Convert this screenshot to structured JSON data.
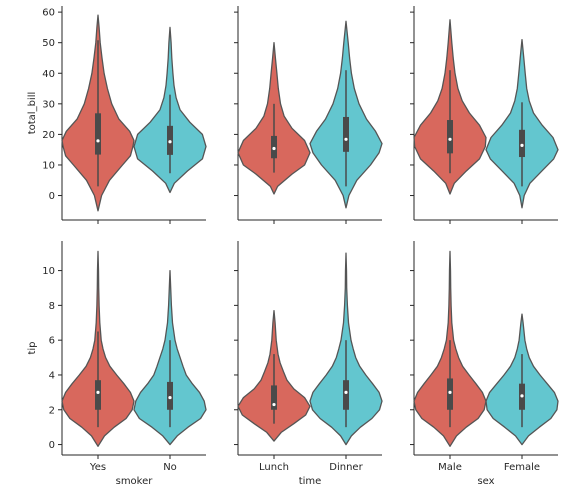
{
  "colors": {
    "first": "#D8685D",
    "second": "#63C6CF",
    "edge": "#555555",
    "box": "#4a4a4a",
    "median": "#ffffff",
    "axis": "#262626"
  },
  "chart_data": {
    "type": "violin",
    "rows": [
      {
        "ylabel": "total_bill",
        "ylim": [
          -8,
          62
        ],
        "yticks": [
          0,
          10,
          20,
          30,
          40,
          50,
          60
        ],
        "yticklabels": [
          "0",
          "10",
          "20",
          "30",
          "40",
          "50",
          "60"
        ]
      },
      {
        "ylabel": "tip",
        "ylim": [
          -0.6,
          11.7
        ],
        "yticks": [
          0,
          2,
          4,
          6,
          8,
          10
        ],
        "yticklabels": [
          "0",
          "2",
          "4",
          "6",
          "8",
          "10"
        ]
      }
    ],
    "columns": [
      {
        "xlabel": "smoker",
        "categories": [
          "Yes",
          "No"
        ]
      },
      {
        "xlabel": "time",
        "categories": [
          "Lunch",
          "Dinner"
        ]
      },
      {
        "xlabel": "sex",
        "categories": [
          "Male",
          "Female"
        ]
      }
    ],
    "panels": [
      [
        [
          {
            "min": -5,
            "max": 59,
            "q1": 13.4,
            "median": 17.9,
            "q3": 26.9,
            "whisker_low": 3,
            "whisker_high": 50.8,
            "profile": [
              [
                -5,
                0
              ],
              [
                0,
                0.1
              ],
              [
                5,
                0.32
              ],
              [
                10,
                0.68
              ],
              [
                13,
                0.9
              ],
              [
                16,
                0.97
              ],
              [
                18,
                1
              ],
              [
                21,
                0.88
              ],
              [
                25,
                0.58
              ],
              [
                30,
                0.38
              ],
              [
                35,
                0.26
              ],
              [
                40,
                0.17
              ],
              [
                45,
                0.11
              ],
              [
                50,
                0.06
              ],
              [
                55,
                0.03
              ],
              [
                59,
                0
              ]
            ]
          },
          {
            "min": 1,
            "max": 55,
            "q1": 13.3,
            "median": 17.6,
            "q3": 22.8,
            "whisker_low": 7.3,
            "whisker_high": 33,
            "profile": [
              [
                1,
                0
              ],
              [
                4,
                0.12
              ],
              [
                8,
                0.48
              ],
              [
                12,
                0.9
              ],
              [
                16,
                1
              ],
              [
                20,
                0.9
              ],
              [
                24,
                0.55
              ],
              [
                28,
                0.28
              ],
              [
                32,
                0.17
              ],
              [
                36,
                0.11
              ],
              [
                40,
                0.08
              ],
              [
                45,
                0.05
              ],
              [
                50,
                0.03
              ],
              [
                55,
                0
              ]
            ]
          }
        ],
        [
          {
            "min": 0.5,
            "max": 50,
            "q1": 12.2,
            "median": 15.4,
            "q3": 19.5,
            "whisker_low": 7.5,
            "whisker_high": 30,
            "profile": [
              [
                0.5,
                0
              ],
              [
                3,
                0.1
              ],
              [
                7,
                0.5
              ],
              [
                10,
                0.85
              ],
              [
                14,
                1
              ],
              [
                18,
                0.85
              ],
              [
                22,
                0.5
              ],
              [
                26,
                0.28
              ],
              [
                30,
                0.18
              ],
              [
                35,
                0.12
              ],
              [
                40,
                0.08
              ],
              [
                45,
                0.04
              ],
              [
                50,
                0
              ]
            ]
          },
          {
            "min": -4,
            "max": 57,
            "q1": 14.3,
            "median": 18.4,
            "q3": 25.7,
            "whisker_low": 3,
            "whisker_high": 41,
            "profile": [
              [
                -4,
                0
              ],
              [
                0,
                0.08
              ],
              [
                5,
                0.3
              ],
              [
                10,
                0.68
              ],
              [
                14,
                0.92
              ],
              [
                17,
                1
              ],
              [
                21,
                0.82
              ],
              [
                25,
                0.57
              ],
              [
                30,
                0.36
              ],
              [
                35,
                0.23
              ],
              [
                40,
                0.15
              ],
              [
                45,
                0.1
              ],
              [
                50,
                0.06
              ],
              [
                57,
                0
              ]
            ]
          }
        ],
        [
          {
            "min": 0.5,
            "max": 57.5,
            "q1": 13.8,
            "median": 18.4,
            "q3": 24.7,
            "whisker_low": 7.3,
            "whisker_high": 41,
            "profile": [
              [
                0.5,
                0
              ],
              [
                4,
                0.12
              ],
              [
                8,
                0.45
              ],
              [
                12,
                0.82
              ],
              [
                16,
                0.98
              ],
              [
                19,
                1
              ],
              [
                23,
                0.82
              ],
              [
                27,
                0.54
              ],
              [
                31,
                0.34
              ],
              [
                35,
                0.22
              ],
              [
                40,
                0.14
              ],
              [
                45,
                0.09
              ],
              [
                50,
                0.05
              ],
              [
                57.5,
                0
              ]
            ]
          },
          {
            "min": -4,
            "max": 51,
            "q1": 12.6,
            "median": 16.4,
            "q3": 21.5,
            "whisker_low": 3,
            "whisker_high": 30.5,
            "profile": [
              [
                -4,
                0
              ],
              [
                0,
                0.06
              ],
              [
                4,
                0.22
              ],
              [
                8,
                0.55
              ],
              [
                12,
                0.88
              ],
              [
                15,
                1
              ],
              [
                19,
                0.86
              ],
              [
                23,
                0.56
              ],
              [
                27,
                0.32
              ],
              [
                31,
                0.2
              ],
              [
                35,
                0.13
              ],
              [
                40,
                0.09
              ],
              [
                45,
                0.05
              ],
              [
                51,
                0
              ]
            ]
          }
        ]
      ],
      [
        [
          {
            "min": -0.1,
            "max": 11.1,
            "q1": 2,
            "median": 3,
            "q3": 3.7,
            "whisker_low": 1,
            "whisker_high": 6.5,
            "profile": [
              [
                -0.1,
                0
              ],
              [
                0.5,
                0.18
              ],
              [
                1,
                0.45
              ],
              [
                1.5,
                0.78
              ],
              [
                2,
                0.95
              ],
              [
                2.5,
                1
              ],
              [
                3,
                0.9
              ],
              [
                3.5,
                0.72
              ],
              [
                4,
                0.52
              ],
              [
                4.5,
                0.33
              ],
              [
                5,
                0.21
              ],
              [
                5.5,
                0.14
              ],
              [
                6,
                0.09
              ],
              [
                7,
                0.05
              ],
              [
                8,
                0.03
              ],
              [
                9,
                0.02
              ],
              [
                10,
                0.015
              ],
              [
                11.1,
                0
              ]
            ]
          },
          {
            "min": 0,
            "max": 10,
            "q1": 2,
            "median": 2.7,
            "q3": 3.6,
            "whisker_low": 1,
            "whisker_high": 6,
            "profile": [
              [
                0,
                0
              ],
              [
                0.5,
                0.2
              ],
              [
                1,
                0.5
              ],
              [
                1.5,
                0.85
              ],
              [
                2,
                1
              ],
              [
                2.5,
                0.95
              ],
              [
                3,
                0.82
              ],
              [
                3.5,
                0.62
              ],
              [
                4,
                0.45
              ],
              [
                4.5,
                0.36
              ],
              [
                5,
                0.28
              ],
              [
                5.5,
                0.2
              ],
              [
                6,
                0.14
              ],
              [
                7,
                0.07
              ],
              [
                8,
                0.04
              ],
              [
                9,
                0.02
              ],
              [
                10,
                0
              ]
            ]
          }
        ],
        [
          {
            "min": 0.2,
            "max": 7.7,
            "q1": 2,
            "median": 2.3,
            "q3": 3.4,
            "whisker_low": 1.2,
            "whisker_high": 5.2,
            "profile": [
              [
                0.2,
                0
              ],
              [
                0.7,
                0.2
              ],
              [
                1.2,
                0.55
              ],
              [
                1.7,
                0.88
              ],
              [
                2.2,
                1
              ],
              [
                2.7,
                0.85
              ],
              [
                3.2,
                0.55
              ],
              [
                3.7,
                0.36
              ],
              [
                4.2,
                0.26
              ],
              [
                4.7,
                0.17
              ],
              [
                5.2,
                0.11
              ],
              [
                6,
                0.06
              ],
              [
                7,
                0.03
              ],
              [
                7.7,
                0
              ]
            ]
          },
          {
            "min": 0,
            "max": 11,
            "q1": 2,
            "median": 3,
            "q3": 3.7,
            "whisker_low": 1,
            "whisker_high": 6,
            "profile": [
              [
                0,
                0
              ],
              [
                0.5,
                0.15
              ],
              [
                1,
                0.4
              ],
              [
                1.5,
                0.72
              ],
              [
                2,
                0.93
              ],
              [
                2.5,
                1
              ],
              [
                3,
                0.92
              ],
              [
                3.5,
                0.74
              ],
              [
                4,
                0.55
              ],
              [
                4.5,
                0.38
              ],
              [
                5,
                0.27
              ],
              [
                5.5,
                0.2
              ],
              [
                6,
                0.14
              ],
              [
                7,
                0.07
              ],
              [
                8,
                0.04
              ],
              [
                9,
                0.02
              ],
              [
                10,
                0.015
              ],
              [
                11,
                0
              ]
            ]
          }
        ],
        [
          {
            "min": -0.1,
            "max": 11.1,
            "q1": 2,
            "median": 3,
            "q3": 3.8,
            "whisker_low": 1,
            "whisker_high": 6,
            "profile": [
              [
                -0.1,
                0
              ],
              [
                0.5,
                0.18
              ],
              [
                1,
                0.45
              ],
              [
                1.5,
                0.78
              ],
              [
                2,
                0.95
              ],
              [
                2.5,
                1
              ],
              [
                3,
                0.9
              ],
              [
                3.5,
                0.72
              ],
              [
                4,
                0.53
              ],
              [
                4.5,
                0.35
              ],
              [
                5,
                0.24
              ],
              [
                5.5,
                0.16
              ],
              [
                6,
                0.1
              ],
              [
                7,
                0.05
              ],
              [
                8,
                0.03
              ],
              [
                9,
                0.02
              ],
              [
                10,
                0.015
              ],
              [
                11.1,
                0
              ]
            ]
          },
          {
            "min": 0,
            "max": 7.5,
            "q1": 2,
            "median": 2.8,
            "q3": 3.5,
            "whisker_low": 1,
            "whisker_high": 5.2,
            "profile": [
              [
                0,
                0
              ],
              [
                0.5,
                0.18
              ],
              [
                1,
                0.48
              ],
              [
                1.5,
                0.8
              ],
              [
                2,
                0.97
              ],
              [
                2.5,
                1
              ],
              [
                3,
                0.9
              ],
              [
                3.5,
                0.7
              ],
              [
                4,
                0.5
              ],
              [
                4.5,
                0.32
              ],
              [
                5,
                0.2
              ],
              [
                5.5,
                0.13
              ],
              [
                6,
                0.08
              ],
              [
                7,
                0.03
              ],
              [
                7.5,
                0
              ]
            ]
          }
        ]
      ]
    ]
  }
}
